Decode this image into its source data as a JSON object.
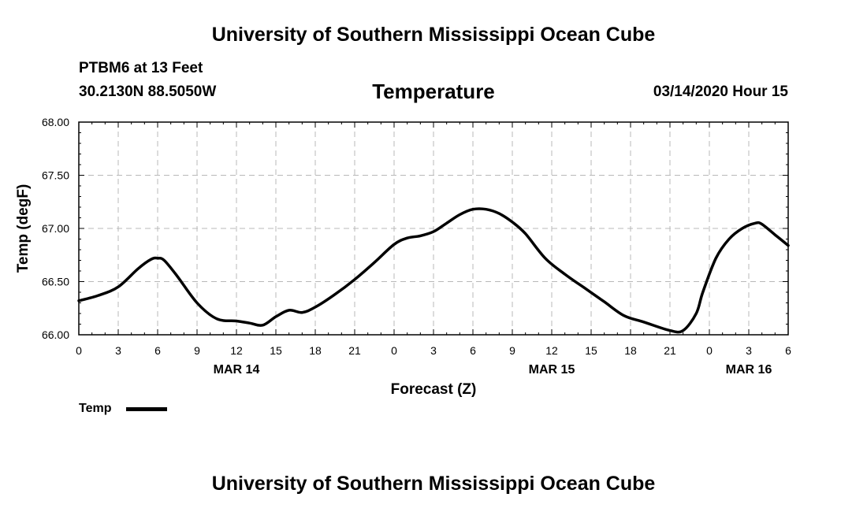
{
  "header": {
    "top_title": "University of Southern Mississippi Ocean Cube",
    "station": "PTBM6 at 13 Feet",
    "coords": "30.2130N 88.5050W",
    "variable": "Temperature",
    "datetime": "03/14/2020 Hour 15"
  },
  "footer": {
    "bottom_title": "University of Southern Mississippi Ocean Cube"
  },
  "legend": {
    "label": "Temp",
    "color": "#000000"
  },
  "chart_data": {
    "type": "line",
    "title": "Temperature",
    "xlabel": "Forecast (Z)",
    "ylabel": "Temp (degF)",
    "xlim": [
      0,
      54
    ],
    "ylim": [
      66.0,
      68.0
    ],
    "grid": true,
    "x_ticks": [
      0,
      3,
      6,
      9,
      12,
      15,
      18,
      21,
      24,
      27,
      30,
      33,
      36,
      39,
      42,
      45,
      48,
      51,
      54
    ],
    "x_tick_labels": [
      "0",
      "3",
      "6",
      "9",
      "12",
      "15",
      "18",
      "21",
      "0",
      "3",
      "6",
      "9",
      "12",
      "15",
      "18",
      "21",
      "0",
      "3",
      "6"
    ],
    "date_labels": [
      {
        "x": 12,
        "label": "MAR 14"
      },
      {
        "x": 36,
        "label": "MAR 15"
      },
      {
        "x": 51,
        "label": "MAR 16"
      }
    ],
    "y_ticks": [
      66.0,
      66.5,
      67.0,
      67.5,
      68.0
    ],
    "y_tick_labels": [
      "66.00",
      "66.50",
      "67.00",
      "67.50",
      "68.00"
    ],
    "series": [
      {
        "name": "Temp",
        "color": "#000000",
        "x": [
          0,
          1.5,
          3,
          4.5,
          5.5,
          6,
          6.5,
          7.5,
          9,
          10.5,
          12,
          13,
          14,
          15,
          16,
          17,
          18,
          19.5,
          21,
          22.5,
          24,
          25,
          26,
          27,
          28,
          29,
          30,
          31,
          32,
          33,
          34,
          35.5,
          37,
          38.5,
          40,
          41.5,
          43,
          45,
          46,
          47,
          47.5,
          48.5,
          49.5,
          50.5,
          51.5,
          52,
          53,
          54
        ],
        "values": [
          66.32,
          66.37,
          66.45,
          66.62,
          66.71,
          66.72,
          66.7,
          66.55,
          66.3,
          66.15,
          66.13,
          66.11,
          66.09,
          66.17,
          66.23,
          66.21,
          66.26,
          66.38,
          66.52,
          66.68,
          66.85,
          66.91,
          66.93,
          66.97,
          67.05,
          67.13,
          67.18,
          67.18,
          67.14,
          67.06,
          66.95,
          66.72,
          66.57,
          66.44,
          66.31,
          66.18,
          66.12,
          66.04,
          66.04,
          66.2,
          66.4,
          66.72,
          66.9,
          67.0,
          67.05,
          67.04,
          66.94,
          66.84
        ]
      }
    ]
  }
}
